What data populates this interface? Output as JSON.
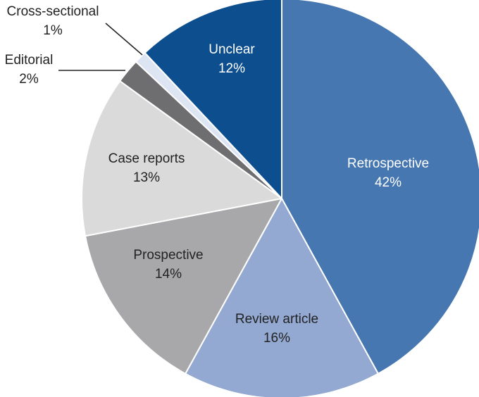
{
  "chart_data": {
    "type": "pie",
    "title": "",
    "slices": [
      {
        "label": "Retrospective",
        "value": 42,
        "value_label": "42%",
        "color": "#4677b0",
        "text_color": "#ffffff"
      },
      {
        "label": "Review article",
        "value": 16,
        "value_label": "16%",
        "color": "#93a9d2",
        "text_color": "#222222"
      },
      {
        "label": "Prospective",
        "value": 14,
        "value_label": "14%",
        "color": "#a8a8aa",
        "text_color": "#222222"
      },
      {
        "label": "Case reports",
        "value": 13,
        "value_label": "13%",
        "color": "#dadada",
        "text_color": "#222222"
      },
      {
        "label": "Editorial",
        "value": 2,
        "value_label": "2%",
        "color": "#6e6e70",
        "text_color": "#222222"
      },
      {
        "label": "Cross-sectional",
        "value": 1,
        "value_label": "1%",
        "color": "#dde5f3",
        "text_color": "#222222"
      },
      {
        "label": "Unclear",
        "value": 12,
        "value_label": "12%",
        "color": "#0d4e8e",
        "text_color": "#ffffff"
      }
    ],
    "start_at": "top",
    "direction": "clockwise",
    "legend": "none"
  }
}
